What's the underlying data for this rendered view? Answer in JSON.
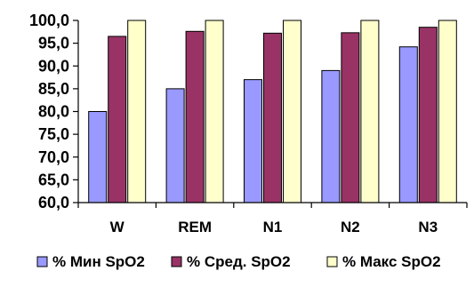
{
  "chart_data": {
    "type": "bar",
    "categories": [
      "W",
      "REM",
      "N1",
      "N2",
      "N3"
    ],
    "series": [
      {
        "name": "% Мин SpO2",
        "color": "#9999ff",
        "values": [
          80.0,
          85.0,
          87.0,
          89.0,
          94.2
        ]
      },
      {
        "name": "% Сред. SpO2",
        "color": "#993366",
        "values": [
          96.5,
          97.6,
          97.2,
          97.3,
          98.5
        ]
      },
      {
        "name": "% Макс SpO2",
        "color": "#ffffcc",
        "values": [
          100.0,
          100.0,
          100.0,
          100.0,
          100.0
        ]
      }
    ],
    "ylim": [
      60,
      100
    ],
    "ytick_step": 5,
    "ytick_labels": [
      "60,0",
      "65,0",
      "70,0",
      "75,0",
      "80,0",
      "85,0",
      "90,0",
      "95,0",
      "100,0"
    ],
    "grid": false,
    "legend_position": "bottom"
  }
}
